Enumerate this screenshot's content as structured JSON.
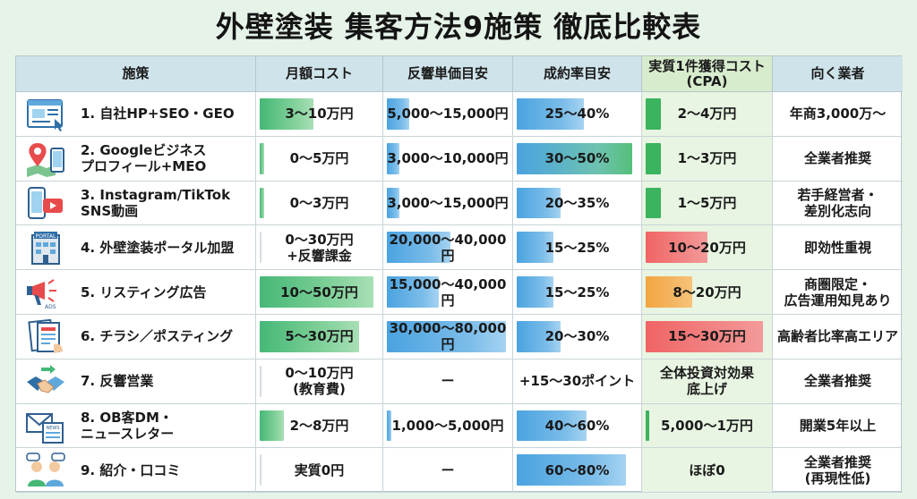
{
  "title": "外壁塗装 集客方法9施策 徹底比較表",
  "headers": [
    "施策",
    "月額コスト",
    "反響単価目安",
    "成約率目安",
    "実質1件獲得コスト\n(CPA)",
    "向く業者"
  ],
  "rows": [
    {
      "name": "1. 自社HP+SEO・GEO",
      "icon": "website-icon",
      "cost": "3〜10万円",
      "cost_level": 0.45,
      "unit": "5,000〜15,000円",
      "unit_level": 0.18,
      "rate": "25〜40%",
      "rate_level": 0.55,
      "cpa": "2〜4万円",
      "cpa_level": 0.12,
      "cpa_color": "green",
      "fit": "年商3,000万〜"
    },
    {
      "name": "2. Googleビジネス\nプロフィール+MEO",
      "icon": "map-pin-icon",
      "cost": "0〜5万円",
      "cost_level": 0.04,
      "unit": "3,000〜10,000円",
      "unit_level": 0.1,
      "rate": "30〜50%",
      "rate_level": 0.95,
      "cpa": "1〜3万円",
      "cpa_level": 0.12,
      "cpa_color": "green",
      "fit": "全業者推奨"
    },
    {
      "name": "3. Instagram/TikTok\nSNS動画",
      "icon": "video-phone-icon",
      "cost": "0〜3万円",
      "cost_level": 0.04,
      "unit": "3,000〜15,000円",
      "unit_level": 0.1,
      "rate": "20〜35%",
      "rate_level": 0.36,
      "cpa": "1〜5万円",
      "cpa_level": 0.12,
      "cpa_color": "green",
      "fit": "若手経営者・\n差別化志向"
    },
    {
      "name": "4. 外壁塗装ポータル加盟",
      "icon": "portal-building-icon",
      "cost": "0〜30万円\n+反響課金",
      "cost_level": 0,
      "unit": "20,000〜40,000円",
      "unit_level": 0.52,
      "rate": "15〜25%",
      "rate_level": 0.3,
      "cpa": "10〜20万円",
      "cpa_level": 0.5,
      "cpa_color": "red",
      "fit": "即効性重視"
    },
    {
      "name": "5. リスティング広告",
      "icon": "megaphone-ads-icon",
      "cost": "10〜50万円",
      "cost_level": 0.95,
      "unit": "15,000〜40,000円",
      "unit_level": 0.42,
      "rate": "15〜25%",
      "rate_level": 0.3,
      "cpa": "8〜20万円",
      "cpa_level": 0.38,
      "cpa_color": "orange",
      "fit": "商圏限定・\n広告運用知見あり"
    },
    {
      "name": "6. チラシ／ポスティング",
      "icon": "flyer-icon",
      "cost": "5〜30万円",
      "cost_level": 0.83,
      "unit": "30,000〜80,000円",
      "unit_level": 0.97,
      "rate": "20〜30%",
      "rate_level": 0.36,
      "cpa": "15〜30万円",
      "cpa_level": 0.95,
      "cpa_color": "red",
      "fit": "高齢者比率高エリア"
    },
    {
      "name": "7. 反響営業",
      "icon": "handshake-icon",
      "cost": "0〜10万円\n(教育費)",
      "cost_level": 0,
      "unit": "ー",
      "unit_level": 0,
      "rate": "+15〜30ポイント",
      "rate_level": 0,
      "cpa": "全体投資対効果\n底上げ",
      "cpa_level": 0,
      "cpa_color": "none",
      "fit": "全業者推奨"
    },
    {
      "name": "8. OB客DM・\nニュースレター",
      "icon": "newsletter-icon",
      "cost": "2〜8万円",
      "cost_level": 0.2,
      "unit": "1,000〜5,000円",
      "unit_level": 0.04,
      "rate": "40〜60%",
      "rate_level": 0.57,
      "cpa": "5,000〜1万円",
      "cpa_level": 0.03,
      "cpa_color": "green",
      "fit": "開業5年以上"
    },
    {
      "name": "9. 紹介・口コミ",
      "icon": "referral-people-icon",
      "cost": "実質0円",
      "cost_level": 0,
      "unit": "ー",
      "unit_level": 0,
      "rate": "60〜80%",
      "rate_level": 0.9,
      "cpa": "ほぼ0",
      "cpa_level": 0,
      "cpa_color": "none",
      "fit": "全業者推奨\n(再現性低)"
    }
  ]
}
